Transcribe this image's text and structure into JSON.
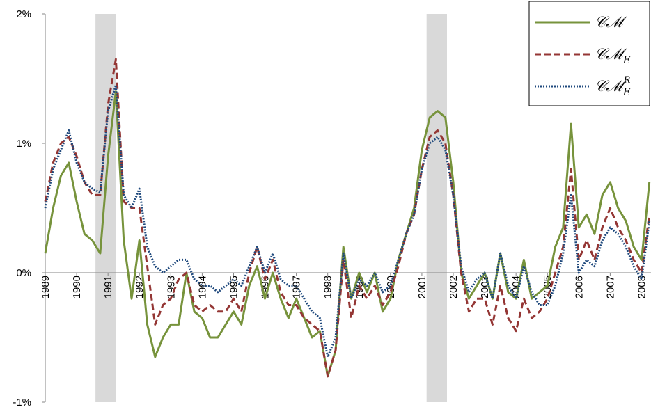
{
  "chart_data": {
    "type": "line",
    "x": [
      1989,
      1989.25,
      1989.5,
      1989.75,
      1990,
      1990.25,
      1990.5,
      1990.75,
      1991,
      1991.25,
      1991.5,
      1991.75,
      1992,
      1992.25,
      1992.5,
      1992.75,
      1993,
      1993.25,
      1993.5,
      1993.75,
      1994,
      1994.25,
      1994.5,
      1994.75,
      1995,
      1995.25,
      1995.5,
      1995.75,
      1996,
      1996.25,
      1996.5,
      1996.75,
      1997,
      1997.25,
      1997.5,
      1997.75,
      1998,
      1998.25,
      1998.5,
      1998.75,
      1999,
      1999.25,
      1999.5,
      1999.75,
      2000,
      2000.25,
      2000.5,
      2000.75,
      2001,
      2001.25,
      2001.5,
      2001.75,
      2002,
      2002.25,
      2002.5,
      2002.75,
      2003,
      2003.25,
      2003.5,
      2003.75,
      2004,
      2004.25,
      2004.5,
      2004.75,
      2005,
      2005.25,
      2005.5,
      2005.75,
      2006,
      2006.25,
      2006.5,
      2006.75,
      2007,
      2007.25,
      2007.5,
      2007.75,
      2008,
      2008.25
    ],
    "series": [
      {
        "name": "𝒞ℳ",
        "color": "#77933c",
        "dash": "solid",
        "values": [
          0.15,
          0.5,
          0.75,
          0.85,
          0.55,
          0.3,
          0.25,
          0.15,
          0.9,
          1.4,
          0.25,
          -0.2,
          0.25,
          -0.4,
          -0.65,
          -0.5,
          -0.4,
          -0.4,
          0.0,
          -0.3,
          -0.35,
          -0.5,
          -0.5,
          -0.4,
          -0.3,
          -0.4,
          -0.1,
          0.05,
          -0.2,
          0.0,
          -0.2,
          -0.35,
          -0.2,
          -0.35,
          -0.5,
          -0.45,
          -0.8,
          -0.6,
          0.2,
          -0.2,
          0.0,
          -0.15,
          0.0,
          -0.3,
          -0.2,
          0.1,
          0.3,
          0.5,
          0.95,
          1.2,
          1.25,
          1.2,
          0.7,
          0.0,
          -0.2,
          -0.1,
          0.0,
          -0.2,
          0.15,
          -0.15,
          -0.2,
          0.1,
          -0.2,
          -0.15,
          -0.1,
          0.2,
          0.35,
          1.15,
          0.35,
          0.45,
          0.3,
          0.6,
          0.7,
          0.5,
          0.4,
          0.2,
          0.1,
          0.7
        ]
      },
      {
        "name": "𝒞ℳE",
        "color": "#943634",
        "dash": "dashed",
        "values": [
          0.55,
          0.85,
          1.0,
          1.05,
          0.9,
          0.7,
          0.6,
          0.6,
          1.3,
          1.65,
          0.55,
          0.5,
          0.5,
          0.05,
          -0.4,
          -0.25,
          -0.2,
          -0.05,
          0.0,
          -0.25,
          -0.3,
          -0.25,
          -0.3,
          -0.3,
          -0.2,
          -0.3,
          0.0,
          0.2,
          -0.05,
          0.1,
          -0.15,
          -0.25,
          -0.25,
          -0.35,
          -0.4,
          -0.45,
          -0.8,
          -0.6,
          0.1,
          -0.35,
          -0.1,
          -0.2,
          -0.1,
          -0.25,
          -0.15,
          0.05,
          0.3,
          0.45,
          0.8,
          1.05,
          1.1,
          1.0,
          0.6,
          0.0,
          -0.3,
          -0.2,
          -0.2,
          -0.4,
          -0.1,
          -0.35,
          -0.45,
          -0.2,
          -0.35,
          -0.3,
          -0.2,
          0.0,
          0.2,
          0.8,
          0.1,
          0.25,
          0.1,
          0.35,
          0.5,
          0.35,
          0.25,
          0.1,
          0.0,
          0.45
        ]
      },
      {
        "name": "𝒞ℳER",
        "color": "#1f497d",
        "dash": "dotted",
        "values": [
          0.5,
          0.8,
          0.95,
          1.1,
          0.85,
          0.7,
          0.65,
          0.62,
          1.25,
          1.45,
          0.6,
          0.5,
          0.65,
          0.2,
          0.05,
          0.0,
          0.05,
          0.1,
          0.1,
          -0.05,
          -0.1,
          -0.1,
          -0.15,
          -0.1,
          -0.05,
          -0.1,
          0.05,
          0.2,
          0.0,
          0.15,
          -0.05,
          -0.1,
          -0.1,
          -0.2,
          -0.3,
          -0.35,
          -0.65,
          -0.5,
          0.15,
          -0.2,
          -0.05,
          -0.1,
          0.0,
          -0.15,
          -0.1,
          0.1,
          0.3,
          0.45,
          0.8,
          1.0,
          1.05,
          0.95,
          0.6,
          0.05,
          -0.15,
          -0.05,
          0.0,
          -0.2,
          0.15,
          -0.1,
          -0.2,
          0.05,
          -0.15,
          -0.25,
          -0.25,
          -0.1,
          0.15,
          0.6,
          0.0,
          0.1,
          0.05,
          0.25,
          0.35,
          0.3,
          0.2,
          0.05,
          -0.05,
          0.4
        ]
      }
    ],
    "xlim": [
      1989,
      2008.3
    ],
    "xticks": [
      1989,
      1990,
      1991,
      1992,
      1993,
      1994,
      1995,
      1996,
      1997,
      1998,
      1999,
      2000,
      2001,
      2002,
      2003,
      2004,
      2005,
      2006,
      2007,
      2008
    ],
    "ylim": [
      -1,
      2
    ],
    "yticks": [
      {
        "value": -1,
        "label": "-1%"
      },
      {
        "value": 0,
        "label": "0%"
      },
      {
        "value": 1,
        "label": "1%"
      },
      {
        "value": 2,
        "label": "2%"
      }
    ],
    "shaded_regions": [
      [
        1990.6,
        1991.25
      ],
      [
        2001.15,
        2001.8
      ]
    ],
    "legend": "top-right"
  }
}
